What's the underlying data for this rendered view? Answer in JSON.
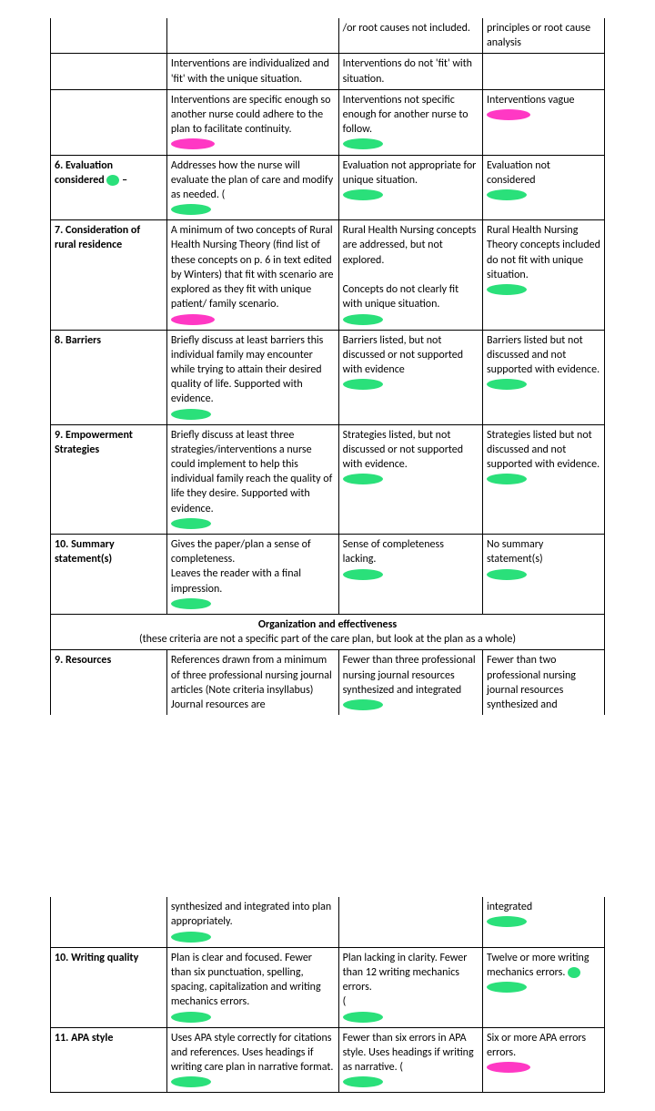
{
  "hl_green": "#2ae07a",
  "hl_pink": "#ff38c4",
  "rows_a": [
    {
      "c1": "",
      "c2": "",
      "c3": "/or root causes not included.",
      "c4": "principles or root cause analysis",
      "h": [
        "",
        "",
        "",
        "",
        ""
      ]
    },
    {
      "c1": "",
      "c2": "Interventions are individualized and 'fit' with the unique situation.",
      "c3": "Interventions do not 'fit' with situation.",
      "c4": "",
      "h": [
        "",
        "",
        "",
        "",
        ""
      ]
    },
    {
      "c1": "",
      "c2": "Interventions are specific enough so another nurse could adhere to the plan to facilitate continuity.",
      "c3": "Interventions not specific enough for another nurse to follow.",
      "c4": "Interventions vague",
      "h": [
        "",
        "p",
        "g",
        "p",
        ""
      ]
    },
    {
      "c1": "6. Evaluation considered –",
      "c2": "Addresses how the nurse will evaluate the plan of care and modify as needed. (",
      "c3": "Evaluation not appropriate for unique situation.",
      "c4": "Evaluation not considered",
      "h": [
        "",
        "g",
        "g",
        "g",
        ""
      ]
    },
    {
      "c1": "7. Consideration of rural residence",
      "c2": "A minimum of two concepts of Rural Health Nursing Theory (find list of these concepts on p. 6 in text edited by Winters) that fit with scenario are explored as they fit with unique patient/ family scenario.",
      "c3": "Rural Health Nursing concepts are addressed, but not explored.\n\nConcepts do not clearly fit with unique situation.",
      "c4": "Rural Health Nursing Theory concepts included do not fit with unique situation.",
      "h": [
        "",
        "p",
        "g",
        "g",
        ""
      ]
    },
    {
      "c1": "8. Barriers",
      "c2": "Briefly discuss at least barriers this individual family may encounter while trying to attain their desired quality of life.  Supported with evidence.",
      "c3": "Barriers listed, but not discussed or not supported with evidence",
      "c4": "Barriers listed but not discussed and not supported with evidence.",
      "h": [
        "",
        "g",
        "g",
        "g",
        ""
      ]
    },
    {
      "c1": "9. Empowerment Strategies",
      "c2": "Briefly discuss at least three strategies/interventions a nurse could implement to help this individual family reach the quality of life they desire. Supported with evidence.",
      "c3": "Strategies listed, but not discussed or not supported with evidence.",
      "c4": "Strategies listed but not discussed and not supported with evidence.",
      "h": [
        "",
        "g",
        "g",
        "g",
        ""
      ]
    },
    {
      "c1": "10. Summary statement(s)",
      "c2": "Gives the paper/plan a sense of completeness.\nLeaves the reader with a final impression.",
      "c3": "Sense of completeness lacking.",
      "c4": "No summary statement(s)",
      "h": [
        "",
        "g",
        "g",
        "g",
        ""
      ]
    }
  ],
  "org_header": "Organization and effectiveness",
  "org_sub": "(these criteria are not a specific part of the care plan, but look at the plan as a whole)",
  "row_res": {
    "c1": "9. Resources",
    "c2": "References drawn from a minimum of three professional nursing journal articles (Note criteria insyllabus) Journal resources are",
    "c3": "Fewer than three professional nursing journal resources synthesized and integrated",
    "c4": "Fewer than two professional nursing journal resources synthesized and",
    "h": [
      "",
      "",
      "g",
      "",
      ""
    ]
  },
  "rows_b": [
    {
      "c1": "",
      "c2": "synthesized and integrated into plan appropriately.",
      "c3": "",
      "c4": "integrated",
      "h": [
        "",
        "g",
        "",
        "g",
        ""
      ]
    },
    {
      "c1": "10. Writing quality",
      "c2": "Plan is clear and focused. Fewer than six punctuation, spelling, spacing, capitalization and writing mechanics errors.",
      "c3": "Plan lacking in clarity. Fewer than 12 writing mechanics errors.\n(",
      "c4": "Twelve or more writing mechanics errors.",
      "h": [
        "",
        "g",
        "g",
        "g",
        ""
      ]
    },
    {
      "c1": "11. APA style",
      "c2": "Uses APA style correctly for citations and references. Uses headings if writing care plan in narrative format.",
      "c3": "Fewer than six errors in APA style.  Uses headings if writing as narrative. (",
      "c4": "Six or more APA errors errors.",
      "h": [
        "",
        "g",
        "g",
        "p",
        ""
      ]
    }
  ]
}
